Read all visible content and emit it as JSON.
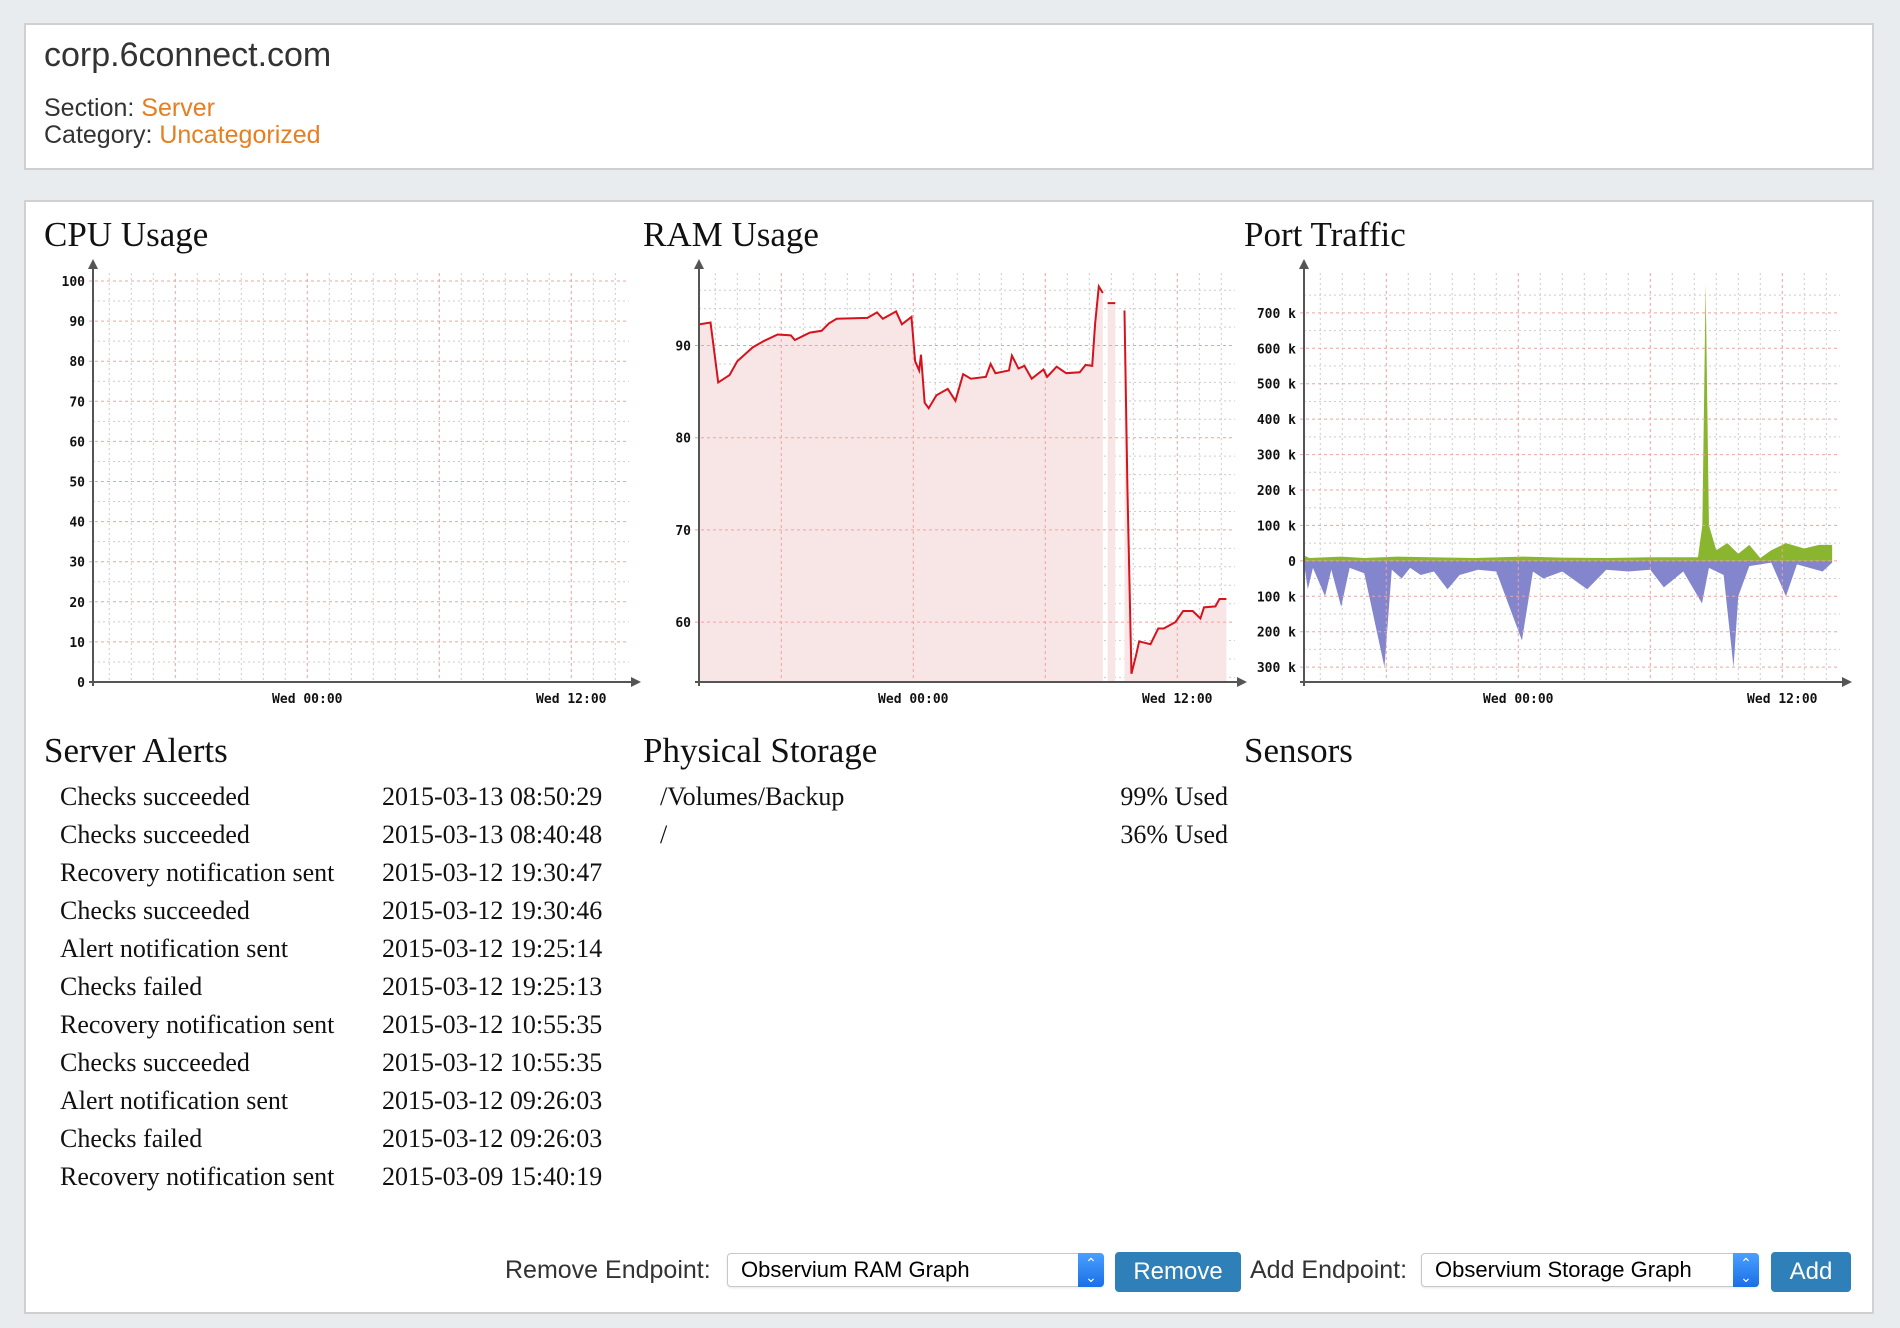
{
  "header": {
    "hostname": "corp.6connect.com",
    "section_label": "Section:",
    "section_value": "Server",
    "category_label": "Category:",
    "category_value": "Uncategorized"
  },
  "colors": {
    "accent": "#e67e22",
    "button": "#2f7fb8",
    "ram_line": "#d7121c",
    "ram_fill": "#f8e6e6",
    "traffic_in": "#8ab52e",
    "traffic_out": "#8386cc",
    "grid_major": "#f4a0a0",
    "grid_minor": "#cccccc"
  },
  "panels": {
    "cpu_title": "CPU Usage",
    "ram_title": "RAM Usage",
    "port_title": "Port Traffic",
    "alerts_title": "Server Alerts",
    "storage_title": "Physical Storage",
    "sensors_title": "Sensors"
  },
  "chart_data": [
    {
      "id": "cpu",
      "type": "line",
      "ylim": [
        0,
        100
      ],
      "yticks": [
        0,
        10,
        20,
        30,
        40,
        50,
        60,
        70,
        80,
        90,
        100
      ],
      "ytick_labels": [
        "0",
        "10",
        "20",
        "30",
        "40",
        "50",
        "60",
        "70",
        "80",
        "90",
        "100"
      ],
      "xticks": [
        "Wed 00:00",
        "Wed 12:00"
      ],
      "grid": true,
      "series": []
    },
    {
      "id": "ram",
      "type": "area",
      "ylim": [
        53.5,
        97
      ],
      "yticks": [
        60,
        70,
        80,
        90
      ],
      "ytick_labels": [
        "60",
        "70",
        "80",
        "90"
      ],
      "xticks": [
        "Wed 00:00",
        "Wed 12:00"
      ],
      "grid": true,
      "series": [
        {
          "segments": [
            [
              [
                "Tue 14:16",
                92.3
              ],
              [
                "Tue 14:47",
                92.5
              ],
              [
                "Tue 14:57",
                89.4
              ],
              [
                "Tue 15:08",
                86
              ],
              [
                "Tue 15:39",
                86.8
              ],
              [
                "Tue 16:00",
                88.3
              ],
              [
                "Tue 16:42",
                89.8
              ],
              [
                "Tue 17:13",
                90.5
              ],
              [
                "Tue 17:50",
                91.2
              ],
              [
                "Tue 18:26",
                91.1
              ],
              [
                "Tue 18:37",
                90.6
              ],
              [
                "Tue 19:18",
                91.4
              ],
              [
                "Tue 19:50",
                91.6
              ],
              [
                "Tue 20:10",
                92.4
              ],
              [
                "Tue 20:31",
                92.9
              ],
              [
                "Tue 21:55",
                93
              ],
              [
                "Tue 22:21",
                93.6
              ],
              [
                "Tue 22:37",
                92.9
              ],
              [
                "Tue 23:13",
                93.7
              ],
              [
                "Tue 23:29",
                92.3
              ],
              [
                "Tue 23:55",
                93.1
              ],
              [
                "Wed 00:05",
                88.3
              ],
              [
                "Wed 00:16",
                87.3
              ],
              [
                "Wed 00:21",
                89
              ],
              [
                "Wed 00:31",
                83.8
              ],
              [
                "Wed 00:42",
                83.2
              ],
              [
                "Wed 01:03",
                84.6
              ],
              [
                "Wed 01:34",
                85.3
              ],
              [
                "Wed 01:55",
                84
              ],
              [
                "Wed 02:16",
                86.9
              ],
              [
                "Wed 02:37",
                86.4
              ],
              [
                "Wed 03:18",
                86.6
              ],
              [
                "Wed 03:31",
                88
              ],
              [
                "Wed 03:44",
                87
              ],
              [
                "Wed 04:21",
                87.3
              ],
              [
                "Wed 04:29",
                88.9
              ],
              [
                "Wed 04:47",
                87.5
              ],
              [
                "Wed 05:03",
                87.8
              ],
              [
                "Wed 05:23",
                86.4
              ],
              [
                "Wed 05:55",
                87.4
              ],
              [
                "Wed 06:05",
                86.6
              ],
              [
                "Wed 06:31",
                87.7
              ],
              [
                "Wed 06:57",
                87
              ],
              [
                "Wed 07:34",
                87.1
              ],
              [
                "Wed 07:50",
                87.9
              ],
              [
                "Wed 08:08",
                87.8
              ],
              [
                "Wed 08:16",
                92.4
              ],
              [
                "Wed 08:26",
                96.4
              ],
              [
                "Wed 08:37",
                95.7
              ]
            ],
            [
              [
                "Wed 08:50",
                94.6
              ],
              [
                "Wed 09:11",
                94.6
              ]
            ],
            [
              [
                "Wed 09:36",
                93.8
              ],
              [
                "Wed 09:44",
                74.6
              ],
              [
                "Wed 09:55",
                54.4
              ],
              [
                "Wed 10:07",
                56.3
              ],
              [
                "Wed 10:16",
                57.9
              ],
              [
                "Wed 10:47",
                57.6
              ],
              [
                "Wed 11:08",
                59.3
              ],
              [
                "Wed 11:23",
                59.3
              ],
              [
                "Wed 11:55",
                60
              ],
              [
                "Wed 12:16",
                61.2
              ],
              [
                "Wed 12:42",
                61.2
              ],
              [
                "Wed 13:03",
                60.4
              ],
              [
                "Wed 13:13",
                61.6
              ],
              [
                "Wed 13:44",
                61.7
              ],
              [
                "Wed 13:55",
                62.5
              ],
              [
                "Wed 14:14",
                62.5
              ]
            ]
          ]
        }
      ]
    },
    {
      "id": "port",
      "type": "area",
      "ylim": [
        -342,
        790
      ],
      "yticks": [
        -300,
        -200,
        -100,
        0,
        100,
        200,
        300,
        400,
        500,
        600,
        700
      ],
      "ytick_labels": [
        "300 k",
        "200 k",
        "100 k",
        "0",
        "100 k",
        "200 k",
        "300 k",
        "400 k",
        "500 k",
        "600 k",
        "700 k"
      ],
      "xticks": [
        "Wed 00:00",
        "Wed 12:00"
      ],
      "grid": true,
      "series": [
        {
          "id": "in",
          "values": [
            [
              "Tue 14:16",
              15
            ],
            [
              "Tue 14:30",
              8
            ],
            [
              "Tue 15:57",
              12
            ],
            [
              "Tue 17:00",
              8
            ],
            [
              "Tue 18:30",
              12
            ],
            [
              "Tue 20:00",
              10
            ],
            [
              "Tue 22:00",
              8
            ],
            [
              "Wed 00:10",
              12
            ],
            [
              "Wed 02:00",
              9
            ],
            [
              "Wed 04:00",
              8
            ],
            [
              "Wed 06:00",
              10
            ],
            [
              "Wed 08:10",
              10
            ],
            [
              "Wed 08:22",
              100
            ],
            [
              "Wed 08:31",
              780
            ],
            [
              "Wed 08:40",
              100
            ],
            [
              "Wed 09:00",
              30
            ],
            [
              "Wed 09:30",
              50
            ],
            [
              "Wed 10:00",
              20
            ],
            [
              "Wed 10:30",
              45
            ],
            [
              "Wed 11:00",
              8
            ],
            [
              "Wed 11:30",
              30
            ],
            [
              "Wed 12:10",
              50
            ],
            [
              "Wed 13:00",
              35
            ],
            [
              "Wed 13:40",
              45
            ],
            [
              "Wed 14:16",
              45
            ]
          ]
        },
        {
          "id": "out",
          "values": [
            [
              "Tue 14:16",
              -10
            ],
            [
              "Tue 14:26",
              -80
            ],
            [
              "Tue 14:40",
              -20
            ],
            [
              "Tue 15:13",
              -100
            ],
            [
              "Tue 15:30",
              -25
            ],
            [
              "Tue 15:57",
              -130
            ],
            [
              "Tue 16:20",
              -20
            ],
            [
              "Tue 17:00",
              -35
            ],
            [
              "Tue 17:55",
              -300
            ],
            [
              "Tue 18:15",
              -25
            ],
            [
              "Tue 18:42",
              -50
            ],
            [
              "Tue 19:05",
              -20
            ],
            [
              "Tue 19:34",
              -40
            ],
            [
              "Tue 20:10",
              -30
            ],
            [
              "Tue 20:47",
              -80
            ],
            [
              "Tue 21:20",
              -40
            ],
            [
              "Tue 22:10",
              -25
            ],
            [
              "Tue 23:00",
              -30
            ],
            [
              "Wed 00:10",
              -225
            ],
            [
              "Wed 00:40",
              -30
            ],
            [
              "Wed 01:08",
              -50
            ],
            [
              "Wed 02:00",
              -30
            ],
            [
              "Wed 03:08",
              -80
            ],
            [
              "Wed 04:00",
              -25
            ],
            [
              "Wed 05:00",
              -30
            ],
            [
              "Wed 06:00",
              -25
            ],
            [
              "Wed 06:37",
              -75
            ],
            [
              "Wed 07:30",
              -30
            ],
            [
              "Wed 08:21",
              -120
            ],
            [
              "Wed 08:40",
              -20
            ],
            [
              "Wed 09:20",
              -40
            ],
            [
              "Wed 09:47",
              -300
            ],
            [
              "Wed 10:00",
              -100
            ],
            [
              "Wed 10:30",
              -15
            ],
            [
              "Wed 11:30",
              -5
            ],
            [
              "Wed 12:10",
              -100
            ],
            [
              "Wed 12:40",
              -10
            ],
            [
              "Wed 13:50",
              -30
            ],
            [
              "Wed 14:16",
              -5
            ]
          ]
        }
      ]
    }
  ],
  "alerts": [
    {
      "message": "Checks succeeded",
      "time": "2015-03-13 08:50:29"
    },
    {
      "message": "Checks succeeded",
      "time": "2015-03-13 08:40:48"
    },
    {
      "message": "Recovery notification sent",
      "time": "2015-03-12 19:30:47"
    },
    {
      "message": "Checks succeeded",
      "time": "2015-03-12 19:30:46"
    },
    {
      "message": "Alert notification sent",
      "time": "2015-03-12 19:25:14"
    },
    {
      "message": "Checks failed",
      "time": "2015-03-12 19:25:13"
    },
    {
      "message": "Recovery notification sent",
      "time": "2015-03-12 10:55:35"
    },
    {
      "message": "Checks succeeded",
      "time": "2015-03-12 10:55:35"
    },
    {
      "message": "Alert notification sent",
      "time": "2015-03-12 09:26:03"
    },
    {
      "message": "Checks failed",
      "time": "2015-03-12 09:26:03"
    },
    {
      "message": "Recovery notification sent",
      "time": "2015-03-09 15:40:19"
    }
  ],
  "storage": [
    {
      "mount": "/Volumes/Backup",
      "usage": "99% Used"
    },
    {
      "mount": "/",
      "usage": "36% Used"
    }
  ],
  "footer": {
    "remove_label": "Remove Endpoint:",
    "remove_selected": "Observium RAM Graph",
    "remove_button": "Remove",
    "add_label": "Add Endpoint:",
    "add_selected": "Observium Storage Graph",
    "add_button": "Add"
  }
}
